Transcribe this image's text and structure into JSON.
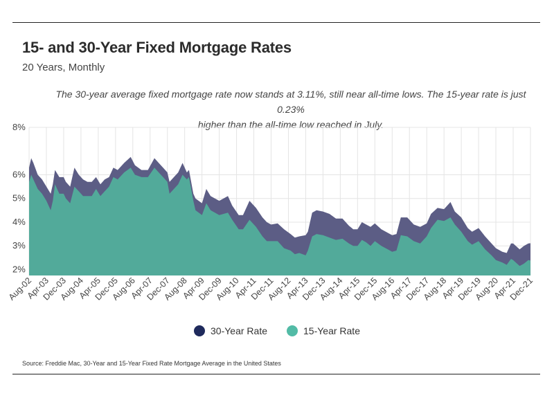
{
  "title": "15- and 30-Year Fixed Mortgage Rates",
  "subtitle": "20 Years, Monthly",
  "annotation_line1": "The 30-year average fixed mortgage rate now stands at 3.11%, still near all-time lows. The 15-year rate is just 0.23%",
  "annotation_line2": "higher than the all-time low reached in July.",
  "source": "Source:  Freddie Mac, 30-Year  and 15-Year Fixed Rate Mortgage Average in the United States",
  "colors": {
    "rate30": "#5c5d85",
    "rate15": "#52aa9a",
    "legend30": "#1f2a5c",
    "legend15": "#52bba6"
  },
  "chart_data": {
    "type": "area",
    "title": "15- and 30-Year Fixed Mortgage Rates",
    "ylim": [
      1.75,
      8
    ],
    "yticks": [
      2,
      3,
      4,
      5,
      6,
      8
    ],
    "ytick_labels": [
      "2%",
      "3%",
      "4%",
      "5%",
      "6%",
      "8%"
    ],
    "x_range": [
      "2002-08",
      "2021-12"
    ],
    "xtick_labels": [
      "Aug-02",
      "Apr-03",
      "Dec-03",
      "Aug-04",
      "Apr-05",
      "Dec-05",
      "Aug-06",
      "Apr-07",
      "Dec-07",
      "Aug-08",
      "Apr-09",
      "Dec-09",
      "Aug-10",
      "Apr-11",
      "Dec-11",
      "Aug-12",
      "Apr-13",
      "Dec-13",
      "Aug-14",
      "Apr-15",
      "Dec-15",
      "Aug-16",
      "Apr-17",
      "Dec-17",
      "Aug-18",
      "Apr-19",
      "Dec-19",
      "Aug-20",
      "Apr-21",
      "Dec-21"
    ],
    "series": [
      {
        "name": "30-Year Rate",
        "points": [
          [
            "2002-08",
            6.3
          ],
          [
            "2002-09",
            6.7
          ],
          [
            "2002-10",
            6.5
          ],
          [
            "2002-12",
            6.0
          ],
          [
            "2003-02",
            5.8
          ],
          [
            "2003-04",
            5.5
          ],
          [
            "2003-06",
            5.2
          ],
          [
            "2003-07",
            5.6
          ],
          [
            "2003-08",
            6.2
          ],
          [
            "2003-10",
            5.9
          ],
          [
            "2003-12",
            5.9
          ],
          [
            "2004-01",
            5.7
          ],
          [
            "2004-03",
            5.5
          ],
          [
            "2004-05",
            6.3
          ],
          [
            "2004-07",
            6.0
          ],
          [
            "2004-09",
            5.8
          ],
          [
            "2004-11",
            5.7
          ],
          [
            "2005-01",
            5.7
          ],
          [
            "2005-03",
            5.9
          ],
          [
            "2005-05",
            5.6
          ],
          [
            "2005-07",
            5.8
          ],
          [
            "2005-09",
            5.9
          ],
          [
            "2005-11",
            6.3
          ],
          [
            "2006-01",
            6.2
          ],
          [
            "2006-04",
            6.5
          ],
          [
            "2006-07",
            6.75
          ],
          [
            "2006-09",
            6.4
          ],
          [
            "2006-12",
            6.2
          ],
          [
            "2007-03",
            6.2
          ],
          [
            "2007-06",
            6.7
          ],
          [
            "2007-08",
            6.5
          ],
          [
            "2007-10",
            6.3
          ],
          [
            "2007-12",
            6.1
          ],
          [
            "2008-01",
            5.7
          ],
          [
            "2008-03",
            5.9
          ],
          [
            "2008-05",
            6.1
          ],
          [
            "2008-07",
            6.5
          ],
          [
            "2008-09",
            6.1
          ],
          [
            "2008-10",
            6.2
          ],
          [
            "2008-12",
            5.2
          ],
          [
            "2009-01",
            5.0
          ],
          [
            "2009-04",
            4.8
          ],
          [
            "2009-06",
            5.4
          ],
          [
            "2009-08",
            5.1
          ],
          [
            "2009-10",
            5.0
          ],
          [
            "2009-12",
            4.9
          ],
          [
            "2010-04",
            5.1
          ],
          [
            "2010-06",
            4.7
          ],
          [
            "2010-09",
            4.3
          ],
          [
            "2010-11",
            4.3
          ],
          [
            "2011-02",
            4.9
          ],
          [
            "2011-05",
            4.6
          ],
          [
            "2011-08",
            4.2
          ],
          [
            "2011-10",
            4.0
          ],
          [
            "2011-12",
            3.9
          ],
          [
            "2012-03",
            3.95
          ],
          [
            "2012-06",
            3.7
          ],
          [
            "2012-09",
            3.5
          ],
          [
            "2012-11",
            3.35
          ],
          [
            "2013-01",
            3.4
          ],
          [
            "2013-04",
            3.45
          ],
          [
            "2013-05",
            3.6
          ],
          [
            "2013-07",
            4.4
          ],
          [
            "2013-09",
            4.5
          ],
          [
            "2013-12",
            4.45
          ],
          [
            "2014-03",
            4.35
          ],
          [
            "2014-06",
            4.15
          ],
          [
            "2014-09",
            4.15
          ],
          [
            "2014-12",
            3.85
          ],
          [
            "2015-02",
            3.7
          ],
          [
            "2015-04",
            3.7
          ],
          [
            "2015-06",
            4.0
          ],
          [
            "2015-08",
            3.9
          ],
          [
            "2015-10",
            3.8
          ],
          [
            "2015-12",
            3.95
          ],
          [
            "2016-03",
            3.7
          ],
          [
            "2016-06",
            3.55
          ],
          [
            "2016-08",
            3.45
          ],
          [
            "2016-10",
            3.5
          ],
          [
            "2016-12",
            4.2
          ],
          [
            "2017-03",
            4.2
          ],
          [
            "2017-06",
            3.9
          ],
          [
            "2017-09",
            3.8
          ],
          [
            "2017-12",
            3.95
          ],
          [
            "2018-02",
            4.35
          ],
          [
            "2018-05",
            4.6
          ],
          [
            "2018-08",
            4.55
          ],
          [
            "2018-11",
            4.85
          ],
          [
            "2019-01",
            4.45
          ],
          [
            "2019-04",
            4.2
          ],
          [
            "2019-07",
            3.75
          ],
          [
            "2019-09",
            3.6
          ],
          [
            "2019-12",
            3.75
          ],
          [
            "2020-03",
            3.4
          ],
          [
            "2020-06",
            3.1
          ],
          [
            "2020-08",
            2.9
          ],
          [
            "2020-11",
            2.75
          ],
          [
            "2021-01",
            2.7
          ],
          [
            "2021-03",
            3.1
          ],
          [
            "2021-04",
            3.1
          ],
          [
            "2021-07",
            2.85
          ],
          [
            "2021-09",
            3.0
          ],
          [
            "2021-11",
            3.1
          ],
          [
            "2021-12",
            3.11
          ]
        ]
      },
      {
        "name": "15-Year Rate",
        "points": [
          [
            "2002-08",
            5.7
          ],
          [
            "2002-09",
            6.0
          ],
          [
            "2002-10",
            5.8
          ],
          [
            "2002-12",
            5.4
          ],
          [
            "2003-02",
            5.2
          ],
          [
            "2003-04",
            4.9
          ],
          [
            "2003-06",
            4.5
          ],
          [
            "2003-07",
            4.9
          ],
          [
            "2003-08",
            5.6
          ],
          [
            "2003-10",
            5.2
          ],
          [
            "2003-12",
            5.2
          ],
          [
            "2004-01",
            5.0
          ],
          [
            "2004-03",
            4.8
          ],
          [
            "2004-05",
            5.5
          ],
          [
            "2004-07",
            5.3
          ],
          [
            "2004-09",
            5.1
          ],
          [
            "2004-11",
            5.1
          ],
          [
            "2005-01",
            5.1
          ],
          [
            "2005-03",
            5.4
          ],
          [
            "2005-05",
            5.1
          ],
          [
            "2005-07",
            5.3
          ],
          [
            "2005-09",
            5.5
          ],
          [
            "2005-11",
            5.9
          ],
          [
            "2006-01",
            5.8
          ],
          [
            "2006-04",
            6.1
          ],
          [
            "2006-07",
            6.3
          ],
          [
            "2006-09",
            6.0
          ],
          [
            "2006-12",
            5.9
          ],
          [
            "2007-03",
            5.9
          ],
          [
            "2007-06",
            6.3
          ],
          [
            "2007-08",
            6.1
          ],
          [
            "2007-10",
            5.9
          ],
          [
            "2007-12",
            5.7
          ],
          [
            "2008-01",
            5.2
          ],
          [
            "2008-03",
            5.4
          ],
          [
            "2008-05",
            5.6
          ],
          [
            "2008-07",
            6.0
          ],
          [
            "2008-09",
            5.8
          ],
          [
            "2008-10",
            5.9
          ],
          [
            "2008-12",
            4.9
          ],
          [
            "2009-01",
            4.5
          ],
          [
            "2009-04",
            4.3
          ],
          [
            "2009-06",
            4.8
          ],
          [
            "2009-08",
            4.5
          ],
          [
            "2009-10",
            4.4
          ],
          [
            "2009-12",
            4.3
          ],
          [
            "2010-04",
            4.4
          ],
          [
            "2010-06",
            4.1
          ],
          [
            "2010-09",
            3.7
          ],
          [
            "2010-11",
            3.7
          ],
          [
            "2011-02",
            4.1
          ],
          [
            "2011-05",
            3.8
          ],
          [
            "2011-08",
            3.4
          ],
          [
            "2011-10",
            3.2
          ],
          [
            "2011-12",
            3.2
          ],
          [
            "2012-03",
            3.2
          ],
          [
            "2012-06",
            2.9
          ],
          [
            "2012-09",
            2.8
          ],
          [
            "2012-11",
            2.65
          ],
          [
            "2013-01",
            2.7
          ],
          [
            "2013-04",
            2.6
          ],
          [
            "2013-05",
            2.8
          ],
          [
            "2013-07",
            3.4
          ],
          [
            "2013-09",
            3.5
          ],
          [
            "2013-12",
            3.45
          ],
          [
            "2014-03",
            3.35
          ],
          [
            "2014-06",
            3.25
          ],
          [
            "2014-09",
            3.3
          ],
          [
            "2014-12",
            3.1
          ],
          [
            "2015-02",
            3.0
          ],
          [
            "2015-04",
            3.0
          ],
          [
            "2015-06",
            3.25
          ],
          [
            "2015-08",
            3.15
          ],
          [
            "2015-10",
            3.0
          ],
          [
            "2015-12",
            3.2
          ],
          [
            "2016-03",
            3.0
          ],
          [
            "2016-06",
            2.85
          ],
          [
            "2016-08",
            2.75
          ],
          [
            "2016-10",
            2.8
          ],
          [
            "2016-12",
            3.45
          ],
          [
            "2017-03",
            3.4
          ],
          [
            "2017-06",
            3.2
          ],
          [
            "2017-09",
            3.1
          ],
          [
            "2017-12",
            3.4
          ],
          [
            "2018-02",
            3.75
          ],
          [
            "2018-05",
            4.1
          ],
          [
            "2018-08",
            4.05
          ],
          [
            "2018-11",
            4.2
          ],
          [
            "2019-01",
            3.9
          ],
          [
            "2019-04",
            3.6
          ],
          [
            "2019-07",
            3.2
          ],
          [
            "2019-09",
            3.05
          ],
          [
            "2019-12",
            3.2
          ],
          [
            "2020-03",
            2.85
          ],
          [
            "2020-06",
            2.6
          ],
          [
            "2020-08",
            2.4
          ],
          [
            "2020-11",
            2.3
          ],
          [
            "2021-01",
            2.2
          ],
          [
            "2021-03",
            2.45
          ],
          [
            "2021-04",
            2.4
          ],
          [
            "2021-07",
            2.15
          ],
          [
            "2021-09",
            2.25
          ],
          [
            "2021-11",
            2.4
          ],
          [
            "2021-12",
            2.38
          ]
        ]
      }
    ]
  }
}
